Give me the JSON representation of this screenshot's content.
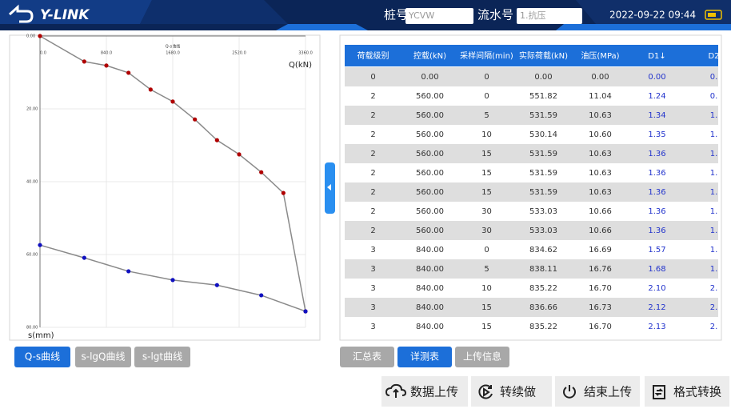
{
  "header": {
    "logo": "Y-LINK",
    "pile_label": "桩号",
    "pile_value": "YCVW",
    "serial_label": "流水号",
    "serial_value": "1.抗压",
    "datetime": "2022-09-22 09:44"
  },
  "chart_data": {
    "type": "line",
    "title": "Q-s曲线",
    "x_label": "Q(kN)",
    "y_label": "s(mm)",
    "xlim": [
      0,
      3360
    ],
    "xticks": [
      {
        "value": 0,
        "label": "0.0"
      },
      {
        "value": 840,
        "label": "840.0"
      },
      {
        "value": 1680,
        "label": "1680.0"
      },
      {
        "value": 2520,
        "label": "2520.0"
      },
      {
        "value": 3360,
        "label": "3360.0"
      }
    ],
    "ylim": [
      0,
      80
    ],
    "yticks": [
      {
        "value": 0,
        "label": "0.00"
      },
      {
        "value": 20,
        "label": "20.00"
      },
      {
        "value": 40,
        "label": "40.00"
      },
      {
        "value": 60,
        "label": "60.00"
      },
      {
        "value": 80,
        "label": "80.00"
      }
    ],
    "y_inverted": true,
    "grid": true,
    "line_color": "#8a8a8a",
    "series": [
      {
        "color": "#b00000",
        "x": [
          0,
          560,
          840,
          1120,
          1400,
          1680,
          1960,
          2240,
          2520,
          2800,
          3080,
          3360
        ],
        "values": [
          0,
          7.0,
          8.1,
          10.1,
          14.7,
          18.0,
          22.9,
          28.6,
          32.5,
          37.4,
          43.1,
          75.6
        ]
      },
      {
        "color": "#1010c0",
        "x": [
          0,
          560,
          1120,
          1680,
          2240,
          2800,
          3360
        ],
        "values": [
          57.4,
          60.9,
          64.6,
          67.0,
          68.4,
          71.2,
          75.6
        ]
      }
    ]
  },
  "chart_tabs": [
    "Q-s曲线",
    "s-lgQ曲线",
    "s-lgt曲线"
  ],
  "table_tabs": [
    "汇总表",
    "详测表",
    "上传信息"
  ],
  "table": {
    "columns": [
      "荷载级别",
      "控载(kN)",
      "采样间隔(min)",
      "实际荷载(kN)",
      "油压(MPa)",
      "D1↓",
      "D2"
    ],
    "rows": [
      [
        "0",
        "0.00",
        "0",
        "0.00",
        "0.00",
        "0.00",
        "0."
      ],
      [
        "2",
        "560.00",
        "0",
        "551.82",
        "11.04",
        "1.24",
        "0."
      ],
      [
        "2",
        "560.00",
        "5",
        "531.59",
        "10.63",
        "1.34",
        "1."
      ],
      [
        "2",
        "560.00",
        "10",
        "530.14",
        "10.60",
        "1.35",
        "1."
      ],
      [
        "2",
        "560.00",
        "15",
        "531.59",
        "10.63",
        "1.36",
        "1."
      ],
      [
        "2",
        "560.00",
        "15",
        "531.59",
        "10.63",
        "1.36",
        "1."
      ],
      [
        "2",
        "560.00",
        "15",
        "531.59",
        "10.63",
        "1.36",
        "1."
      ],
      [
        "2",
        "560.00",
        "30",
        "533.03",
        "10.66",
        "1.36",
        "1."
      ],
      [
        "2",
        "560.00",
        "30",
        "533.03",
        "10.66",
        "1.36",
        "1."
      ],
      [
        "3",
        "840.00",
        "0",
        "834.62",
        "16.69",
        "1.57",
        "1."
      ],
      [
        "3",
        "840.00",
        "5",
        "838.11",
        "16.76",
        "1.68",
        "1."
      ],
      [
        "3",
        "840.00",
        "10",
        "835.22",
        "16.70",
        "2.10",
        "2."
      ],
      [
        "3",
        "840.00",
        "15",
        "836.66",
        "16.73",
        "2.12",
        "2."
      ],
      [
        "3",
        "840.00",
        "15",
        "835.22",
        "16.70",
        "2.13",
        "2."
      ]
    ]
  },
  "actions": [
    "数据上传",
    "转续做",
    "结束上传",
    "格式转换"
  ]
}
